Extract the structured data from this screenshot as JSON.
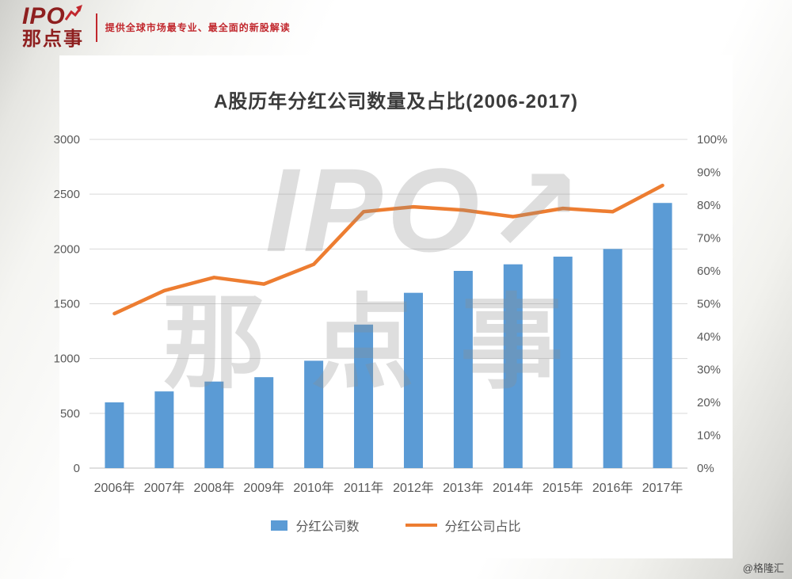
{
  "brand": {
    "logo_main": "IPO",
    "logo_sub": "那点事",
    "tagline": "提供全球市场最专业、最全面的新股解读"
  },
  "watermark": {
    "line1": "IPO↗",
    "line2": "那点事"
  },
  "footer": {
    "credit": "@格隆汇"
  },
  "chart_data": {
    "type": "combo",
    "title": "A股历年分红公司数量及占比(2006-2017)",
    "categories": [
      "2006年",
      "2007年",
      "2008年",
      "2009年",
      "2010年",
      "2011年",
      "2012年",
      "2013年",
      "2014年",
      "2015年",
      "2016年",
      "2017年"
    ],
    "series": [
      {
        "name": "分红公司数",
        "type": "bar",
        "axis": "left",
        "values": [
          600,
          700,
          790,
          830,
          980,
          1310,
          1600,
          1800,
          1860,
          1930,
          2000,
          2420
        ]
      },
      {
        "name": "分红公司占比",
        "type": "line",
        "axis": "right",
        "values": [
          47,
          54,
          58,
          56,
          62,
          78,
          79.5,
          78.5,
          76.5,
          79,
          78,
          86
        ]
      }
    ],
    "left_axis": {
      "min": 0,
      "max": 3000,
      "step": 500,
      "suffix": ""
    },
    "right_axis": {
      "min": 0,
      "max": 100,
      "step": 10,
      "suffix": "%"
    },
    "grid": true,
    "legend_position": "bottom",
    "colors": {
      "bar": "#5b9bd5",
      "line": "#ed7d31",
      "grid": "#d9d9d9",
      "tick_text": "#595959",
      "axis_line": "#bfbfbf"
    }
  }
}
